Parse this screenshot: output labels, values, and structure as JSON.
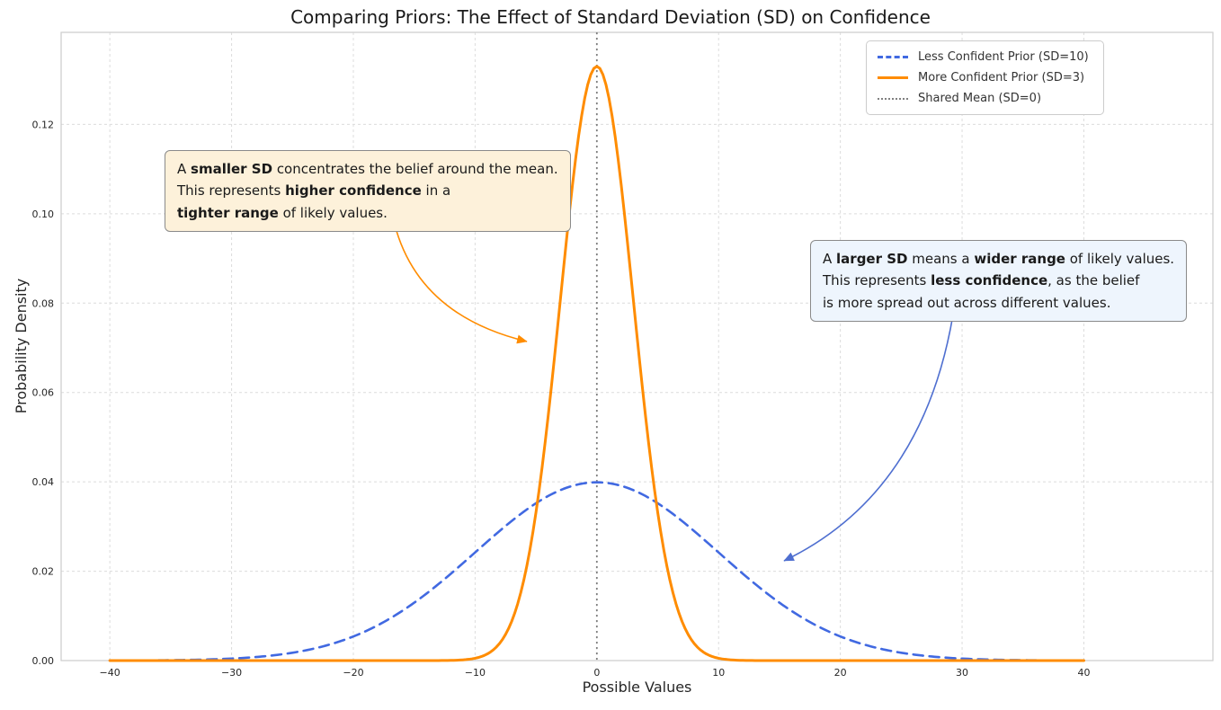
{
  "chart_data": {
    "type": "line",
    "title": "Comparing Priors: The Effect of Standard Deviation (SD) on Confidence",
    "xlabel": "Possible Values",
    "ylabel": "Probability Density",
    "x_range_plotted": [
      -40,
      40
    ],
    "xlim": [
      -44,
      50.6
    ],
    "ylim": [
      0,
      0.1406
    ],
    "x_ticks": [
      -40,
      -30,
      -20,
      -10,
      0,
      10,
      20,
      30,
      40
    ],
    "x_tick_labels": [
      "−40",
      "−30",
      "−20",
      "−10",
      "0",
      "10",
      "20",
      "30",
      "40"
    ],
    "y_ticks": [
      0,
      0.02,
      0.04,
      0.06,
      0.08,
      0.1,
      0.12
    ],
    "y_tick_labels": [
      "0.00",
      "0.02",
      "0.04",
      "0.06",
      "0.08",
      "0.10",
      "0.12"
    ],
    "grid": true,
    "grid_style": "dashed",
    "legend_position": "upper right",
    "series": [
      {
        "name": "Less Confident Prior (SD=10)",
        "distribution": "normal",
        "mean": 0,
        "sd": 10,
        "peak_density": 0.0399,
        "color": "#4169e1",
        "line_style": "dashed",
        "line_width": 2.6
      },
      {
        "name": "More Confident Prior (SD=3)",
        "distribution": "normal",
        "mean": 0,
        "sd": 3,
        "peak_density": 0.133,
        "color": "#ff8c00",
        "line_style": "solid",
        "line_width": 3
      }
    ],
    "reference_line": {
      "name": "Shared Mean (SD=0)",
      "x": 0,
      "color": "#808080",
      "line_style": "dotted"
    }
  },
  "annotations": [
    {
      "id": "smaller-sd",
      "bg_color": "#fdf1da",
      "border_color": "#8a8a8a",
      "arrow_color": "#ff8c00",
      "segments": [
        {
          "text": "A ",
          "bold": false
        },
        {
          "text": "smaller SD",
          "bold": true
        },
        {
          "text": " concentrates the belief around the mean.\nThis represents ",
          "bold": false
        },
        {
          "text": "higher confidence",
          "bold": true
        },
        {
          "text": " in a\n",
          "bold": false
        },
        {
          "text": "tighter range",
          "bold": true
        },
        {
          "text": " of likely values.",
          "bold": false
        }
      ]
    },
    {
      "id": "larger-sd",
      "bg_color": "#eef5fd",
      "border_color": "#8a8a8a",
      "arrow_color": "#4f6fd0",
      "segments": [
        {
          "text": "A ",
          "bold": false
        },
        {
          "text": "larger SD",
          "bold": true
        },
        {
          "text": " means a ",
          "bold": false
        },
        {
          "text": "wider range",
          "bold": true
        },
        {
          "text": " of likely values.\nThis represents ",
          "bold": false
        },
        {
          "text": "less confidence",
          "bold": true
        },
        {
          "text": ", as the belief\nis more spread out across different values.",
          "bold": false
        }
      ]
    }
  ]
}
